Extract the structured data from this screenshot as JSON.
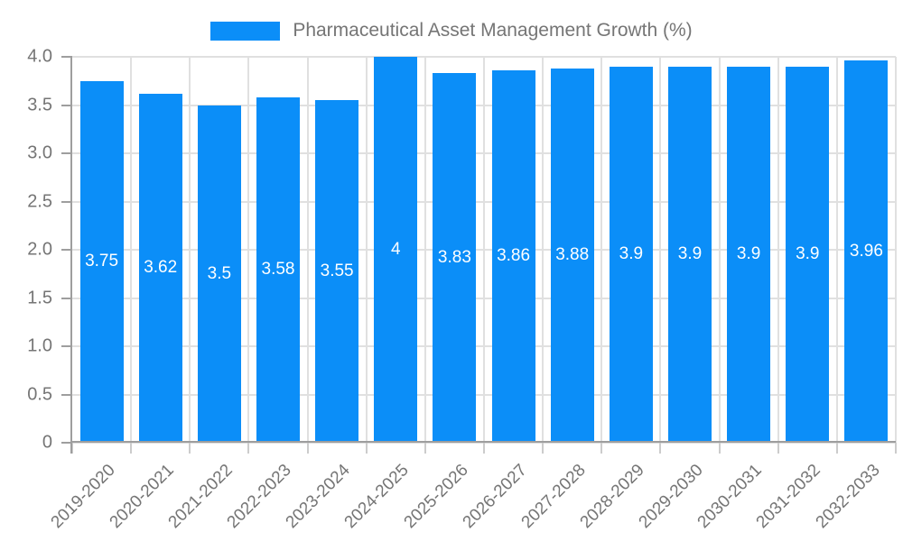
{
  "legend": {
    "label": "Pharmaceutical Asset Management Growth (%)"
  },
  "chart_data": {
    "type": "bar",
    "title": "Pharmaceutical Asset Management Growth (%)",
    "categories": [
      "2019-2020",
      "2020-2021",
      "2021-2022",
      "2022-2023",
      "2023-2024",
      "2024-2025",
      "2025-2026",
      "2026-2027",
      "2027-2028",
      "2028-2029",
      "2029-2030",
      "2030-2031",
      "2031-2032",
      "2032-2033"
    ],
    "values": [
      3.75,
      3.62,
      3.5,
      3.58,
      3.55,
      4,
      3.83,
      3.86,
      3.88,
      3.9,
      3.9,
      3.9,
      3.9,
      3.96
    ],
    "value_labels": [
      "3.75",
      "3.62",
      "3.5",
      "3.58",
      "3.55",
      "4",
      "3.83",
      "3.86",
      "3.88",
      "3.9",
      "3.9",
      "3.9",
      "3.9",
      "3.96"
    ],
    "xlabel": "",
    "ylabel": "",
    "ylim": [
      0,
      4
    ],
    "y_tick_labels": [
      "0",
      "0.5",
      "1.0",
      "1.5",
      "2.0",
      "2.5",
      "3.0",
      "3.5",
      "4.0"
    ],
    "grid": true,
    "legend_position": "top-center",
    "x_label_rotation_deg": 45,
    "colors": {
      "bar": "#0b8ef8",
      "grid": "#e0e0e0",
      "axis": "#9e9e9e",
      "tick": "#cccccc",
      "label": "#757575",
      "value_label": "#ffffff",
      "background": "#ffffff"
    }
  }
}
